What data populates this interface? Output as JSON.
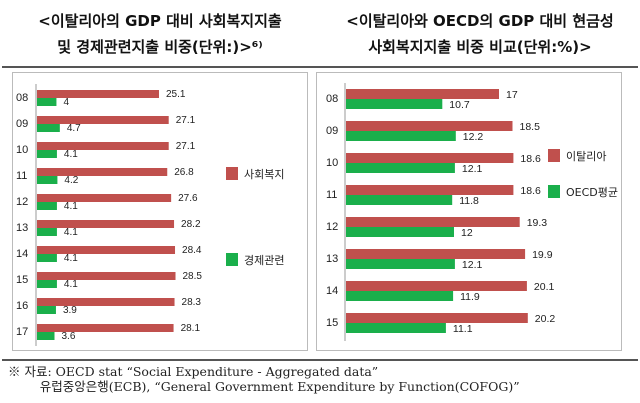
{
  "titles": {
    "left_line1": "<이탈리아의 GDP 대비 사회복지지출",
    "left_line2": "및 경제관련지출 비중(단위:)>⁶⁾",
    "right_line1": "<이탈리아와 OECD의 GDP 대비 현금성",
    "right_line2": "사회복지지출 비중 비교(단위:%)>"
  },
  "chart_data": [
    {
      "type": "bar",
      "orientation": "horizontal",
      "categories": [
        "08",
        "09",
        "10",
        "11",
        "12",
        "13",
        "14",
        "15",
        "16",
        "17"
      ],
      "series": [
        {
          "name": "사회복지",
          "color": "#c0504d",
          "values": [
            25.1,
            27.1,
            27.1,
            26.8,
            27.6,
            28.2,
            28.4,
            28.5,
            28.3,
            28.1
          ]
        },
        {
          "name": "경제관련",
          "color": "#1aaf4b",
          "values": [
            4,
            4.7,
            4.1,
            4.2,
            4.1,
            4.1,
            4.1,
            4.1,
            3.9,
            3.6
          ]
        }
      ],
      "legend": "right"
    },
    {
      "type": "bar",
      "orientation": "horizontal",
      "categories": [
        "08",
        "09",
        "10",
        "11",
        "12",
        "13",
        "14",
        "15"
      ],
      "series": [
        {
          "name": "이탈리아",
          "color": "#c0504d",
          "values": [
            17,
            18.5,
            18.6,
            18.6,
            19.3,
            19.9,
            20.1,
            20.2
          ]
        },
        {
          "name": "OECD평균",
          "color": "#1aaf4b",
          "values": [
            10.7,
            12.2,
            12.1,
            11.8,
            12,
            12.1,
            11.9,
            11.1
          ]
        }
      ],
      "legend": "right"
    }
  ],
  "source": {
    "line1": "※ 자료: OECD stat “Social Expenditure - Aggregated data”",
    "line2": "        유럽중앙은행(ECB), “General Government Expenditure by Function(COFOG)”"
  }
}
